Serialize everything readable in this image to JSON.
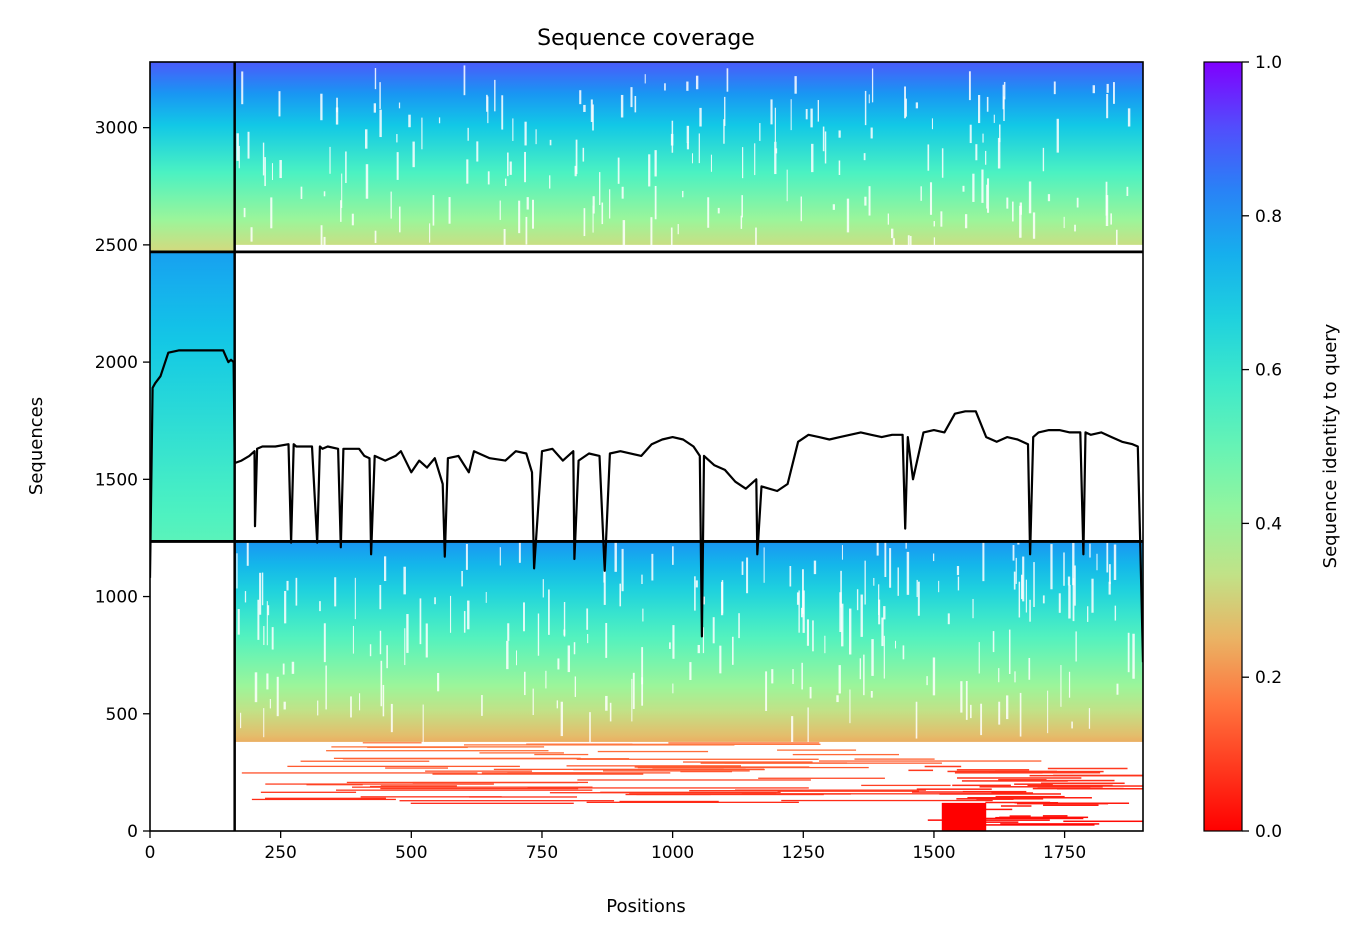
{
  "chart_data": {
    "type": "heatmap",
    "title": "Sequence coverage",
    "xlabel": "Positions",
    "ylabel": "Sequences",
    "xlim": [
      0,
      1900
    ],
    "ylim": [
      0,
      3280
    ],
    "xticks": [
      0,
      250,
      500,
      750,
      1000,
      1250,
      1500,
      1750
    ],
    "yticks": [
      0,
      500,
      1000,
      1500,
      2000,
      2500,
      3000
    ],
    "colorbar": {
      "label": "Sequence identity to query",
      "range": [
        0,
        1
      ],
      "ticks": [
        "0.0",
        "0.2",
        "0.4",
        "0.6",
        "0.8",
        "1.0"
      ],
      "colormap": "rainbow_r",
      "stops": [
        {
          "v": 0.0,
          "color": "#ff0000"
        },
        {
          "v": 0.2,
          "color": "#ff8c4a"
        },
        {
          "v": 0.3,
          "color": "#d4d97e"
        },
        {
          "v": 0.4,
          "color": "#9cf59a"
        },
        {
          "v": 0.55,
          "color": "#4bf2c2"
        },
        {
          "v": 0.7,
          "color": "#12c8e6"
        },
        {
          "v": 0.8,
          "color": "#1996f3"
        },
        {
          "v": 0.9,
          "color": "#4a5bfb"
        },
        {
          "v": 1.0,
          "color": "#8000ff"
        }
      ]
    },
    "domain_boundary_position": 162,
    "blocks": [
      {
        "name": "domain-1-block",
        "x": [
          0,
          162
        ],
        "y": [
          1235,
          2470
        ],
        "identity_bottom": 0.52,
        "identity_top": 0.78
      },
      {
        "name": "domain-2-block-lower",
        "x": [
          162,
          1900
        ],
        "y": [
          0,
          1235
        ],
        "identity_bottom": 0.0,
        "identity_top": 0.8
      },
      {
        "name": "domain-2-block-upper",
        "x": [
          0,
          1900
        ],
        "y": [
          2470,
          3280
        ],
        "identity_bottom": 0.3,
        "identity_top": 0.9
      }
    ],
    "separator_lines_y": [
      1235,
      2470
    ],
    "coverage_line": {
      "x": [
        0,
        5,
        10,
        20,
        35,
        55,
        80,
        100,
        120,
        140,
        148,
        150,
        155,
        160,
        162,
        163,
        175,
        190,
        200,
        201,
        205,
        215,
        240,
        265,
        270,
        275,
        280,
        300,
        310,
        320,
        325,
        330,
        340,
        360,
        365,
        370,
        380,
        400,
        410,
        420,
        423,
        430,
        450,
        470,
        480,
        500,
        515,
        530,
        545,
        560,
        564,
        570,
        590,
        610,
        620,
        650,
        680,
        700,
        720,
        731,
        735,
        750,
        770,
        790,
        810,
        812,
        820,
        840,
        860,
        870,
        880,
        900,
        940,
        960,
        980,
        1000,
        1020,
        1040,
        1052,
        1056,
        1060,
        1080,
        1100,
        1120,
        1140,
        1160,
        1162,
        1170,
        1200,
        1220,
        1240,
        1260,
        1280,
        1300,
        1320,
        1360,
        1380,
        1400,
        1420,
        1440,
        1445,
        1450,
        1460,
        1480,
        1500,
        1520,
        1540,
        1560,
        1580,
        1600,
        1620,
        1640,
        1660,
        1680,
        1684,
        1690,
        1700,
        1720,
        1740,
        1760,
        1780,
        1786,
        1790,
        1800,
        1820,
        1840,
        1860,
        1880,
        1890,
        1895,
        1900
      ],
      "y": [
        1080,
        1890,
        1910,
        1940,
        2040,
        2050,
        2050,
        2050,
        2050,
        2050,
        2010,
        2000,
        2010,
        2000,
        1580,
        1570,
        1580,
        1600,
        1620,
        1300,
        1630,
        1640,
        1640,
        1650,
        1230,
        1650,
        1640,
        1640,
        1640,
        1230,
        1640,
        1630,
        1640,
        1630,
        1210,
        1630,
        1630,
        1630,
        1600,
        1590,
        1180,
        1600,
        1580,
        1600,
        1620,
        1530,
        1580,
        1550,
        1590,
        1480,
        1170,
        1590,
        1600,
        1530,
        1620,
        1590,
        1580,
        1620,
        1610,
        1530,
        1120,
        1620,
        1630,
        1580,
        1620,
        1160,
        1580,
        1610,
        1600,
        1110,
        1610,
        1620,
        1600,
        1650,
        1670,
        1680,
        1670,
        1640,
        1600,
        830,
        1600,
        1560,
        1540,
        1490,
        1460,
        1500,
        1180,
        1470,
        1450,
        1480,
        1660,
        1690,
        1680,
        1670,
        1680,
        1700,
        1690,
        1680,
        1690,
        1690,
        1290,
        1680,
        1500,
        1700,
        1710,
        1700,
        1780,
        1790,
        1790,
        1680,
        1660,
        1680,
        1670,
        1650,
        1180,
        1680,
        1700,
        1710,
        1710,
        1700,
        1700,
        1180,
        1700,
        1690,
        1700,
        1680,
        1660,
        1650,
        1640,
        1200,
        720
      ]
    }
  }
}
